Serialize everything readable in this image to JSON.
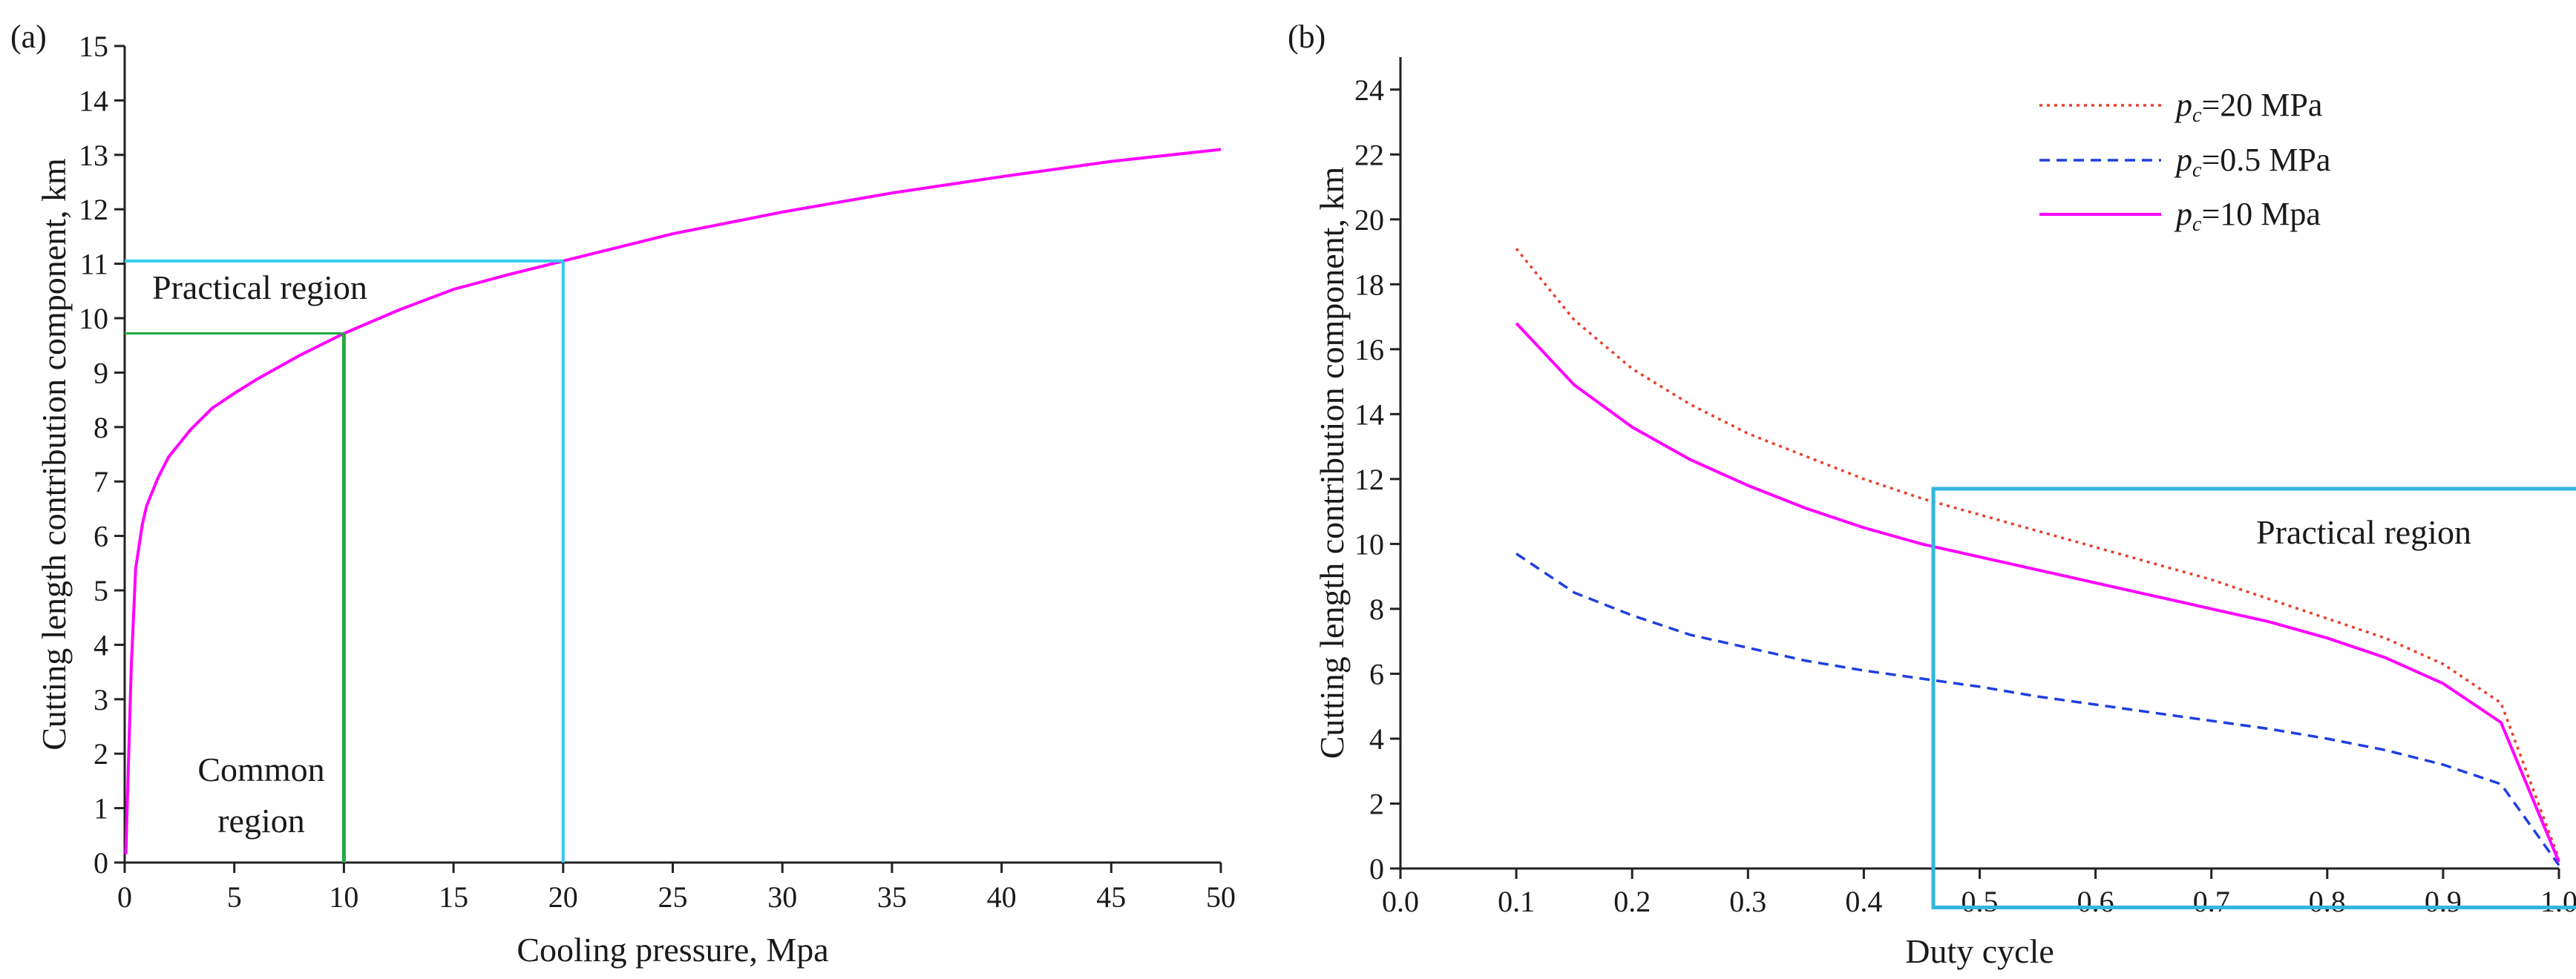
{
  "chart_data": [
    {
      "type": "line",
      "panel_label": "(a)",
      "xlabel": "Cooling pressure, Mpa",
      "ylabel": "Cutting length contribution component, km",
      "xlim": [
        0,
        50
      ],
      "ylim": [
        0,
        15
      ],
      "xticks": [
        0,
        5,
        10,
        15,
        20,
        25,
        30,
        35,
        40,
        45,
        50
      ],
      "yticks": [
        0,
        1,
        2,
        3,
        4,
        5,
        6,
        7,
        8,
        9,
        10,
        11,
        12,
        13,
        14,
        15
      ],
      "series": [
        {
          "name": "cutting length",
          "color": "#ff00ff",
          "style": "solid",
          "x": [
            0.05,
            0.15,
            0.3,
            0.5,
            0.8,
            1,
            1.5,
            2,
            3,
            4,
            5,
            6,
            8,
            10,
            12.5,
            15,
            17.5,
            20,
            22.5,
            25,
            30,
            35,
            40,
            45,
            50
          ],
          "y": [
            0.15,
            1.5,
            3.6,
            5.4,
            6.2,
            6.55,
            7.05,
            7.45,
            7.95,
            8.35,
            8.62,
            8.87,
            9.32,
            9.72,
            10.15,
            10.53,
            10.8,
            11.05,
            11.3,
            11.55,
            11.95,
            12.3,
            12.6,
            12.88,
            13.1
          ]
        }
      ],
      "annotations": [
        {
          "kind": "region",
          "name": "Practical region",
          "color": "#33ccee",
          "x": 20,
          "y": 11.05,
          "label": "Practical region"
        },
        {
          "kind": "region",
          "name": "Common region",
          "color": "#22aa44",
          "x": 10,
          "y": 9.72,
          "label_line1": "Common",
          "label_line2": "region"
        }
      ]
    },
    {
      "type": "line",
      "panel_label": "(b)",
      "xlabel": "Duty cycle",
      "ylabel": "Cutting length contribution component, km",
      "xlim": [
        0.0,
        1.0
      ],
      "ylim": [
        0,
        25
      ],
      "xticks": [
        0.0,
        0.1,
        0.2,
        0.3,
        0.4,
        0.5,
        0.6,
        0.7,
        0.8,
        0.9,
        1.0
      ],
      "xtick_labels": [
        "0.0",
        "0.1",
        "0.2",
        "0.3",
        "0.4",
        "0.5",
        "0.6",
        "0.7",
        "0.8",
        "0.9",
        "1.0"
      ],
      "yticks": [
        0,
        2,
        4,
        6,
        8,
        10,
        12,
        14,
        16,
        18,
        20,
        22,
        24
      ],
      "legend_position": "top-right",
      "series": [
        {
          "name_prefix": "p",
          "name_sub": "c",
          "name_suffix": "=20 MPa",
          "color": "#e8412c",
          "style": "dotted",
          "x": [
            0.1,
            0.15,
            0.2,
            0.25,
            0.3,
            0.35,
            0.4,
            0.45,
            0.5,
            0.55,
            0.6,
            0.65,
            0.7,
            0.75,
            0.8,
            0.85,
            0.9,
            0.95,
            1.0
          ],
          "y": [
            19.1,
            16.9,
            15.4,
            14.3,
            13.4,
            12.7,
            12.0,
            11.4,
            10.9,
            10.4,
            9.9,
            9.4,
            8.9,
            8.3,
            7.7,
            7.1,
            6.3,
            5.1,
            0.3
          ]
        },
        {
          "name_prefix": "p",
          "name_sub": "c",
          "name_suffix": "=0.5 MPa",
          "color": "#1f3fe0",
          "style": "dashed",
          "x": [
            0.1,
            0.15,
            0.2,
            0.25,
            0.3,
            0.35,
            0.4,
            0.45,
            0.5,
            0.55,
            0.6,
            0.65,
            0.7,
            0.75,
            0.8,
            0.85,
            0.9,
            0.95,
            1.0
          ],
          "y": [
            9.7,
            8.5,
            7.8,
            7.2,
            6.8,
            6.4,
            6.1,
            5.85,
            5.6,
            5.3,
            5.05,
            4.8,
            4.55,
            4.3,
            4.0,
            3.65,
            3.2,
            2.6,
            0.1
          ]
        },
        {
          "name_prefix": "p",
          "name_sub": "c",
          "name_suffix": "=10 Mpa",
          "color": "#ff00ff",
          "style": "solid",
          "x": [
            0.1,
            0.15,
            0.2,
            0.25,
            0.3,
            0.35,
            0.4,
            0.45,
            0.5,
            0.55,
            0.6,
            0.65,
            0.7,
            0.75,
            0.8,
            0.85,
            0.9,
            0.95,
            1.0
          ],
          "y": [
            16.8,
            14.9,
            13.6,
            12.6,
            11.8,
            11.1,
            10.5,
            10.0,
            9.6,
            9.2,
            8.8,
            8.4,
            8.0,
            7.6,
            7.1,
            6.5,
            5.7,
            4.5,
            0.2
          ]
        }
      ],
      "annotations": [
        {
          "kind": "box",
          "name": "Practical region",
          "color": "#33b5e0",
          "x0": 0.46,
          "x1": 1.04,
          "y0": -1.2,
          "y1": 11.7,
          "label": "Practical region"
        }
      ]
    }
  ]
}
